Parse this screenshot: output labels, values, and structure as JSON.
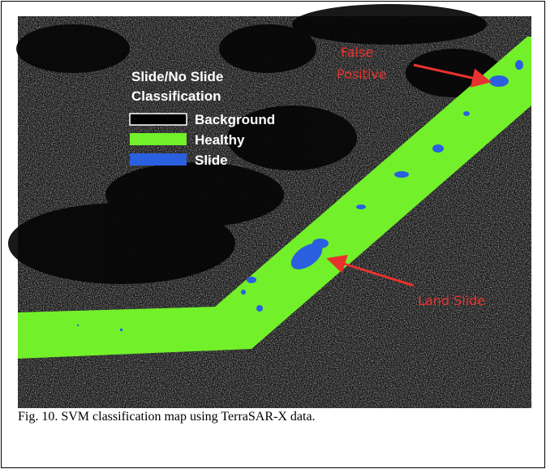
{
  "figure": {
    "legend": {
      "title": [
        "Slide/No Slide",
        "Classification"
      ],
      "items": [
        "Background",
        "Healthy",
        "Slide"
      ]
    },
    "annotations": {
      "false_positive": [
        "False",
        "Positive"
      ],
      "land_slide": "Land Slide"
    }
  },
  "caption": "Fig. 10. SVM classification map using TerraSAR-X data."
}
